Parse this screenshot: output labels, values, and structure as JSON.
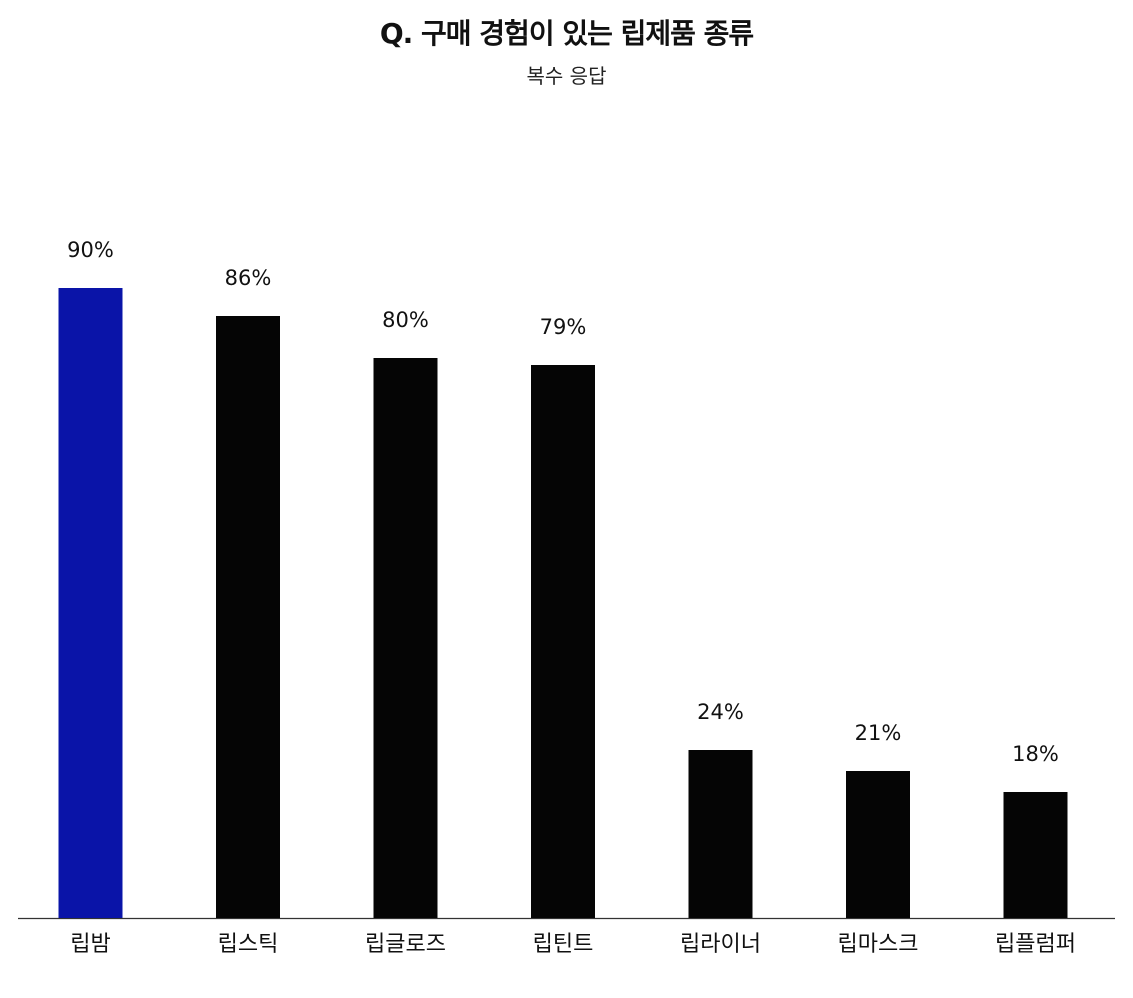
{
  "chart_data": {
    "type": "bar",
    "title": "Q. 구매 경험이 있는 립제품 종류",
    "subtitle": "복수 응답",
    "categories": [
      "립밤",
      "립스틱",
      "립글로즈",
      "립틴트",
      "립라이너",
      "립마스크",
      "립플럼퍼"
    ],
    "values": [
      90,
      86,
      80,
      79,
      24,
      21,
      18
    ],
    "value_labels": [
      "90%",
      "86%",
      "80%",
      "79%",
      "24%",
      "21%",
      "18%"
    ],
    "unit": "%",
    "ylim": [
      0,
      100
    ],
    "grid": false,
    "legend": "none",
    "colors": {
      "highlight": "#0a14a8",
      "default": "#050505",
      "axis": "#333333"
    },
    "highlight_index": 0
  }
}
